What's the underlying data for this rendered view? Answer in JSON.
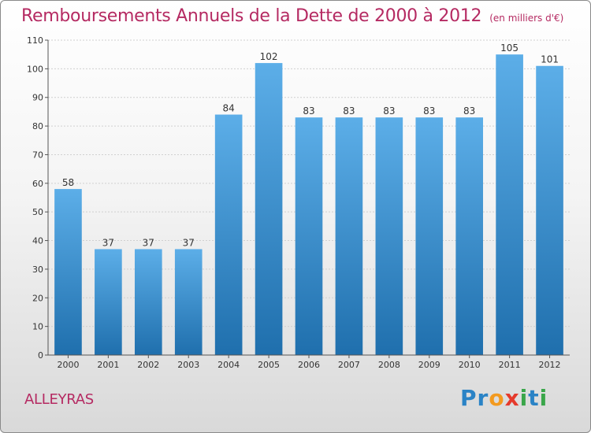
{
  "header": {
    "title": "Remboursements Annuels de la Dette de 2000 à 2012",
    "unit": "(en milliers d'€)"
  },
  "footer": {
    "commune": "ALLEYRAS",
    "logo_letters": [
      "P",
      "r",
      "o",
      "x",
      "i",
      "t",
      "i"
    ],
    "logo_colors": [
      "#2a83c6",
      "#2a83c6",
      "#f39a1f",
      "#e53a2c",
      "#3aa64a",
      "#2a83c6",
      "#3aa64a"
    ]
  },
  "colors": {
    "title": "#b52a62",
    "bar_top": "#5caee8",
    "bar_bottom": "#1f6fad"
  },
  "chart_data": {
    "type": "bar",
    "title": "Remboursements Annuels de la Dette de 2000 à 2012",
    "subtitle": "(en milliers d'€)",
    "xlabel": "",
    "ylabel": "",
    "categories": [
      "2000",
      "2001",
      "2002",
      "2003",
      "2004",
      "2005",
      "2006",
      "2007",
      "2008",
      "2009",
      "2010",
      "2011",
      "2012"
    ],
    "values": [
      58,
      37,
      37,
      37,
      84,
      102,
      83,
      83,
      83,
      83,
      83,
      105,
      101
    ],
    "data_labels": [
      "58",
      "37",
      "37",
      "37",
      "84",
      "102",
      "83",
      "83",
      "83",
      "83",
      "83",
      "105",
      "101"
    ],
    "ylim": [
      0,
      110
    ],
    "yticks": [
      0,
      10,
      20,
      30,
      40,
      50,
      60,
      70,
      80,
      90,
      100,
      110
    ],
    "grid": true,
    "legend": "none"
  }
}
